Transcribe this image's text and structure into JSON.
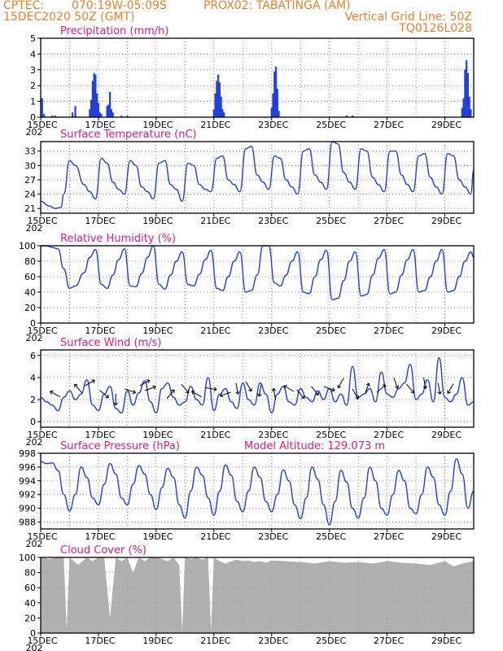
{
  "header": {
    "line1_left": "CPTEC:",
    "line1_coords": "070:19W-05:09S",
    "line1_station": "PROX02: TABATINGA (AM)",
    "line2_left": "15DEC2020 50Z (GMT)",
    "line2_right": "Vertical Grid Line: 50Z",
    "line3_right": "TQ0126L028"
  },
  "x_axis": {
    "tick_labels": [
      "15DEC",
      "17DEC",
      "19DEC",
      "21DEC",
      "23DEC",
      "25DEC",
      "27DEC",
      "29DEC"
    ],
    "tick_days": [
      0,
      2,
      4,
      6,
      8,
      10,
      12,
      14
    ],
    "range_days": [
      0,
      15
    ],
    "year_stub": "202"
  },
  "colors": {
    "line": "#1f3fe0",
    "bar": "#1f3fe0",
    "cloud": "#b0b0b0",
    "title": "#e5197f",
    "header": "#e8822a",
    "arrow": "#000000"
  },
  "chart_data": [
    {
      "id": "precip",
      "type": "bar",
      "title": "Precipitation (mm/h)",
      "ylim": [
        0,
        5
      ],
      "yticks": [
        0,
        1,
        2,
        3,
        4,
        5
      ],
      "grid": true,
      "x": [
        0.05,
        0.12,
        0.4,
        0.5,
        1.1,
        1.2,
        1.7,
        1.75,
        1.8,
        1.85,
        1.9,
        1.95,
        2.0,
        2.05,
        2.1,
        2.3,
        2.35,
        2.4,
        2.45,
        2.5,
        2.8,
        3.0,
        6.0,
        6.05,
        6.1,
        6.15,
        6.2,
        6.25,
        6.3,
        6.35,
        8.0,
        8.05,
        8.1,
        8.15,
        8.2,
        8.25,
        10.6,
        10.8,
        14.6,
        14.65,
        14.7,
        14.75,
        14.8,
        14.85,
        14.9
      ],
      "values": [
        1.2,
        0.2,
        0.1,
        0.1,
        0.3,
        0.7,
        0.5,
        1.1,
        2.3,
        2.8,
        2.7,
        1.5,
        0.9,
        0.3,
        0.2,
        0.7,
        0.8,
        1.6,
        0.5,
        0.3,
        0.1,
        0.1,
        0.5,
        1.5,
        2.3,
        2.7,
        2.2,
        1.3,
        0.5,
        0.3,
        0.6,
        1.5,
        2.9,
        3.2,
        1.8,
        0.4,
        0.1,
        0.1,
        0.6,
        1.2,
        3.0,
        3.6,
        2.8,
        1.3,
        0.5
      ]
    },
    {
      "id": "temperature",
      "type": "line",
      "title": "Surface Temperature (nC)",
      "ylim": [
        20,
        35
      ],
      "yticks": [
        21,
        24,
        27,
        30,
        33
      ],
      "grid": true,
      "x": [
        0.0,
        0.3,
        0.5,
        0.7,
        0.8,
        1.0,
        1.2,
        1.5,
        1.7,
        1.9,
        2.1,
        2.3,
        2.5,
        2.7,
        2.9,
        3.1,
        3.3,
        3.5,
        3.7,
        3.9,
        4.1,
        4.3,
        4.5,
        4.7,
        4.9,
        5.1,
        5.3,
        5.5,
        5.7,
        5.9,
        6.1,
        6.3,
        6.5,
        6.7,
        6.9,
        7.1,
        7.3,
        7.5,
        7.7,
        7.9,
        8.1,
        8.3,
        8.5,
        8.7,
        8.9,
        9.1,
        9.3,
        9.5,
        9.7,
        9.9,
        10.1,
        10.3,
        10.5,
        10.7,
        10.9,
        11.1,
        11.3,
        11.5,
        11.7,
        11.9,
        12.1,
        12.3,
        12.5,
        12.7,
        12.9,
        13.1,
        13.3,
        13.5,
        13.7,
        13.9,
        14.1,
        14.3,
        14.5,
        14.7,
        14.9,
        15.0
      ],
      "values": [
        22.5,
        21.5,
        21.0,
        21.2,
        24.0,
        31.0,
        30.0,
        26.0,
        24.5,
        23.0,
        31.5,
        30.5,
        26.5,
        25.0,
        24.0,
        31.0,
        30.0,
        25.5,
        24.5,
        23.0,
        30.5,
        31.0,
        26.0,
        25.0,
        22.5,
        30.5,
        30.0,
        26.0,
        25.0,
        24.5,
        31.5,
        32.0,
        27.0,
        26.0,
        24.5,
        33.5,
        34.0,
        28.0,
        26.5,
        25.0,
        32.0,
        31.5,
        27.0,
        25.5,
        24.0,
        33.0,
        33.5,
        28.0,
        26.5,
        25.0,
        35.0,
        34.5,
        28.5,
        26.5,
        25.0,
        33.5,
        33.0,
        27.5,
        26.0,
        24.5,
        33.0,
        33.0,
        28.0,
        26.0,
        24.5,
        32.0,
        32.5,
        27.5,
        25.5,
        24.0,
        32.5,
        32.0,
        27.0,
        25.5,
        24.0,
        29.0
      ]
    },
    {
      "id": "humidity",
      "type": "line",
      "title": "Relative Humidity (%)",
      "ylim": [
        0,
        100
      ],
      "yticks": [
        0,
        20,
        40,
        60,
        80,
        100
      ],
      "grid": true,
      "x": [
        0.0,
        0.2,
        0.4,
        0.6,
        0.8,
        1.0,
        1.2,
        1.5,
        1.7,
        1.9,
        2.1,
        2.3,
        2.5,
        2.7,
        2.9,
        3.1,
        3.3,
        3.5,
        3.7,
        3.9,
        4.1,
        4.3,
        4.5,
        4.7,
        4.9,
        5.1,
        5.3,
        5.5,
        5.7,
        5.9,
        6.1,
        6.3,
        6.5,
        6.7,
        6.9,
        7.1,
        7.3,
        7.5,
        7.7,
        7.9,
        8.1,
        8.3,
        8.5,
        8.7,
        8.9,
        9.1,
        9.3,
        9.5,
        9.7,
        9.9,
        10.1,
        10.3,
        10.5,
        10.7,
        10.9,
        11.1,
        11.3,
        11.5,
        11.7,
        11.9,
        12.1,
        12.3,
        12.5,
        12.7,
        12.9,
        13.1,
        13.3,
        13.5,
        13.7,
        13.9,
        14.1,
        14.3,
        14.5,
        14.7,
        14.9,
        15.0
      ],
      "values": [
        100,
        100,
        98,
        96,
        70,
        45,
        48,
        65,
        85,
        95,
        50,
        45,
        62,
        82,
        96,
        48,
        47,
        64,
        85,
        100,
        50,
        44,
        62,
        80,
        92,
        50,
        48,
        63,
        82,
        94,
        45,
        42,
        60,
        80,
        92,
        40,
        42,
        62,
        100,
        100,
        52,
        48,
        62,
        80,
        92,
        40,
        38,
        60,
        82,
        94,
        30,
        32,
        55,
        80,
        92,
        35,
        37,
        62,
        84,
        95,
        38,
        40,
        62,
        82,
        95,
        40,
        42,
        60,
        80,
        95,
        40,
        42,
        60,
        80,
        92,
        85
      ]
    },
    {
      "id": "wind",
      "type": "line",
      "title": "Surface Wind (m/s)",
      "ylim": [
        -0.5,
        6.5
      ],
      "yticks": [
        0,
        2,
        4,
        6
      ],
      "grid": true,
      "x": [
        0.0,
        0.2,
        0.4,
        0.6,
        0.8,
        1.0,
        1.2,
        1.4,
        1.6,
        1.8,
        2.0,
        2.2,
        2.4,
        2.6,
        2.8,
        3.0,
        3.2,
        3.4,
        3.6,
        3.8,
        4.0,
        4.2,
        4.4,
        4.6,
        4.8,
        5.0,
        5.2,
        5.4,
        5.6,
        5.8,
        6.0,
        6.2,
        6.4,
        6.6,
        6.8,
        7.0,
        7.2,
        7.4,
        7.6,
        7.8,
        8.0,
        8.2,
        8.4,
        8.6,
        8.8,
        9.0,
        9.2,
        9.4,
        9.6,
        9.8,
        10.0,
        10.2,
        10.4,
        10.6,
        10.8,
        11.0,
        11.2,
        11.4,
        11.6,
        11.8,
        12.0,
        12.2,
        12.4,
        12.6,
        12.8,
        13.0,
        13.2,
        13.4,
        13.6,
        13.8,
        14.0,
        14.2,
        14.4,
        14.6,
        14.8,
        15.0
      ],
      "values": [
        2.2,
        1.8,
        1.5,
        1.0,
        2.2,
        2.8,
        2.0,
        2.5,
        3.8,
        1.5,
        1.0,
        2.5,
        3.2,
        1.2,
        0.8,
        2.8,
        1.5,
        2.6,
        3.7,
        1.8,
        0.8,
        3.0,
        3.5,
        2.2,
        1.5,
        1.8,
        3.2,
        2.0,
        1.5,
        4.0,
        1.0,
        2.5,
        3.0,
        1.8,
        1.2,
        3.5,
        2.0,
        1.5,
        3.5,
        2.5,
        0.8,
        2.5,
        3.2,
        1.8,
        1.5,
        3.0,
        2.2,
        1.8,
        2.8,
        2.0,
        3.0,
        1.8,
        2.5,
        1.5,
        5.0,
        2.2,
        2.5,
        3.0,
        1.8,
        4.5,
        2.5,
        2.2,
        3.0,
        3.5,
        5.2,
        2.0,
        2.5,
        3.8,
        1.8,
        5.8,
        2.2,
        1.8,
        2.5,
        4.0,
        1.5,
        1.8
      ],
      "arrows": {
        "x": [
          0.5,
          1.3,
          1.7,
          2.2,
          2.6,
          3.1,
          3.6,
          3.8,
          4.5,
          5.0,
          5.4,
          5.9,
          6.4,
          6.8,
          7.2,
          7.6,
          8.1,
          8.6,
          9.0,
          9.5,
          10.0,
          10.4,
          10.9,
          11.3,
          11.8,
          12.3,
          12.8,
          13.3,
          13.8,
          14.2
        ],
        "dir_deg": [
          300,
          320,
          60,
          130,
          180,
          110,
          60,
          70,
          40,
          140,
          300,
          100,
          250,
          170,
          150,
          190,
          350,
          300,
          140,
          140,
          110,
          210,
          150,
          20,
          50,
          160,
          140,
          170,
          170,
          210
        ],
        "speed": [
          2.5,
          3.0,
          3.5,
          2.5,
          2.0,
          2.8,
          3.5,
          3.0,
          2.5,
          3.0,
          2.5,
          3.0,
          2.5,
          3.0,
          3.2,
          2.8,
          2.5,
          3.0,
          2.5,
          2.8,
          3.0,
          3.5,
          2.5,
          3.0,
          3.0,
          3.5,
          3.0,
          3.5,
          3.0,
          3.0
        ]
      }
    },
    {
      "id": "pressure",
      "type": "line",
      "title": "Surface Pressure (hPa)",
      "annotation": "Model Altitude: 129.073 m",
      "ylim": [
        987,
        998
      ],
      "yticks": [
        988,
        990,
        992,
        994,
        996,
        998
      ],
      "grid": true,
      "x": [
        0.0,
        0.2,
        0.4,
        0.6,
        0.8,
        1.0,
        1.2,
        1.4,
        1.6,
        1.8,
        2.0,
        2.2,
        2.4,
        2.6,
        2.8,
        3.0,
        3.2,
        3.4,
        3.6,
        3.8,
        4.0,
        4.2,
        4.4,
        4.6,
        4.8,
        5.0,
        5.2,
        5.4,
        5.6,
        5.8,
        6.0,
        6.2,
        6.4,
        6.6,
        6.8,
        7.0,
        7.2,
        7.4,
        7.6,
        7.8,
        8.0,
        8.2,
        8.4,
        8.6,
        8.8,
        9.0,
        9.2,
        9.4,
        9.6,
        9.8,
        10.0,
        10.2,
        10.4,
        10.6,
        10.8,
        11.0,
        11.2,
        11.4,
        11.6,
        11.8,
        12.0,
        12.2,
        12.4,
        12.6,
        12.8,
        13.0,
        13.2,
        13.4,
        13.6,
        13.8,
        14.0,
        14.2,
        14.4,
        14.6,
        14.8,
        15.0
      ],
      "values": [
        996.8,
        996.5,
        996.6,
        995.5,
        992.0,
        989.6,
        992.0,
        996.0,
        994.5,
        991.5,
        990.5,
        993.5,
        996.5,
        995.0,
        991.5,
        990.5,
        993.5,
        996.2,
        995.0,
        992.0,
        989.8,
        993.0,
        995.8,
        994.5,
        990.5,
        988.6,
        992.5,
        996.0,
        994.8,
        991.5,
        989.0,
        992.5,
        996.3,
        994.8,
        991.0,
        989.5,
        992.5,
        996.0,
        994.5,
        991.0,
        989.5,
        992.0,
        995.6,
        994.0,
        990.5,
        988.5,
        991.5,
        996.0,
        994.2,
        990.5,
        987.6,
        991.0,
        995.5,
        993.8,
        990.0,
        988.6,
        991.5,
        996.0,
        994.0,
        990.0,
        989.0,
        992.0,
        995.5,
        994.0,
        990.0,
        989.2,
        992.0,
        996.0,
        994.5,
        990.5,
        989.0,
        992.5,
        997.2,
        995.0,
        990.0,
        992.5
      ]
    },
    {
      "id": "cloud",
      "type": "area",
      "title": "Cloud Cover (%)",
      "ylim": [
        0,
        100
      ],
      "yticks": [
        0,
        20,
        40,
        60,
        80,
        100
      ],
      "grid": true,
      "x": [
        0.0,
        0.3,
        0.6,
        0.8,
        0.9,
        1.0,
        1.3,
        1.6,
        1.8,
        2.0,
        2.2,
        2.4,
        2.6,
        2.8,
        3.0,
        3.2,
        3.4,
        3.6,
        3.8,
        4.0,
        4.2,
        4.4,
        4.6,
        4.8,
        4.9,
        5.0,
        5.2,
        5.4,
        5.6,
        5.8,
        5.9,
        6.0,
        6.2,
        6.4,
        6.6,
        6.8,
        7.0,
        7.2,
        7.4,
        7.6,
        7.8,
        8.0,
        8.5,
        9.0,
        9.5,
        10.0,
        10.5,
        11.0,
        11.5,
        12.0,
        12.5,
        13.0,
        13.5,
        14.0,
        14.3,
        14.6,
        15.0
      ],
      "values": [
        100,
        98,
        100,
        100,
        5,
        100,
        90,
        100,
        95,
        100,
        100,
        20,
        100,
        95,
        100,
        80,
        100,
        95,
        100,
        100,
        98,
        95,
        100,
        90,
        2,
        100,
        98,
        100,
        97,
        100,
        3,
        100,
        95,
        92,
        95,
        97,
        95,
        96,
        94,
        95,
        93,
        96,
        95,
        94,
        92,
        95,
        93,
        94,
        92,
        95,
        93,
        92,
        90,
        95,
        88,
        92,
        95
      ]
    }
  ]
}
